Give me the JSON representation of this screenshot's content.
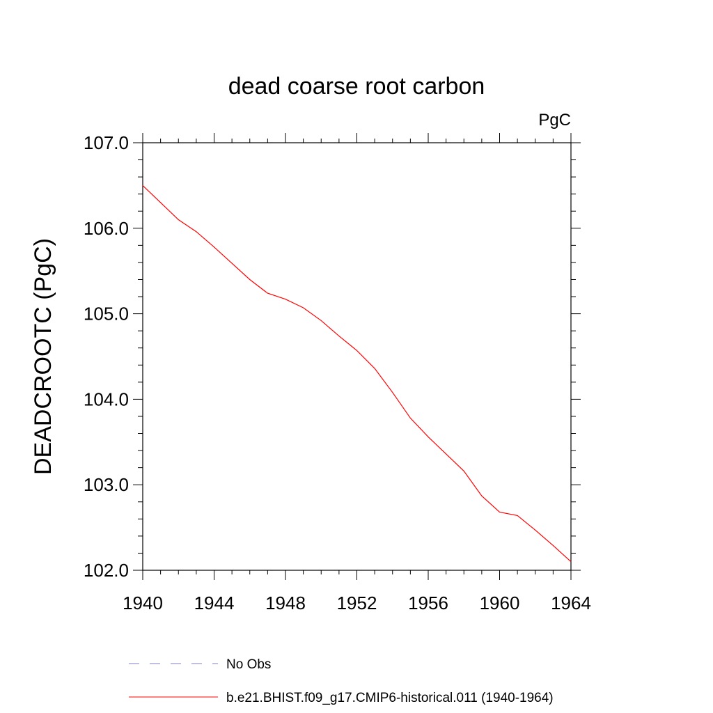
{
  "chart_data": {
    "type": "line",
    "title": "dead coarse root carbon",
    "units_label": "PgC",
    "xlabel": "",
    "ylabel": "DEADCROOTC  (PgC)",
    "xlim": [
      1940,
      1964
    ],
    "ylim": [
      102.0,
      107.0
    ],
    "x_ticks": [
      1940,
      1944,
      1948,
      1952,
      1956,
      1960,
      1964
    ],
    "x_tick_labels": [
      "1940",
      "1944",
      "1948",
      "1952",
      "1956",
      "1960",
      "1964"
    ],
    "y_ticks": [
      102.0,
      103.0,
      104.0,
      105.0,
      106.0,
      107.0
    ],
    "y_tick_labels": [
      "102.0",
      "103.0",
      "104.0",
      "105.0",
      "106.0",
      "107.0"
    ],
    "grid": false,
    "legend_position": "bottom",
    "series": [
      {
        "name": "b.e21.BHIST.f09_g17.CMIP6-historical.011 (1940-1964)",
        "color": "#ff0000",
        "dash": "solid",
        "x": [
          1940,
          1941,
          1942,
          1943,
          1944,
          1945,
          1946,
          1947,
          1948,
          1949,
          1950,
          1951,
          1952,
          1953,
          1954,
          1955,
          1956,
          1957,
          1958,
          1959,
          1960,
          1961,
          1962,
          1963,
          1964
        ],
        "y": [
          106.5,
          106.3,
          106.1,
          105.96,
          105.78,
          105.59,
          105.4,
          105.24,
          105.17,
          105.07,
          104.92,
          104.74,
          104.57,
          104.36,
          104.08,
          103.78,
          103.56,
          103.36,
          103.16,
          102.87,
          102.68,
          102.64,
          102.47,
          102.29,
          102.1
        ]
      }
    ],
    "legend": [
      {
        "label": "No Obs",
        "color": "#7f7fbf",
        "dash": "dashed"
      },
      {
        "label": "b.e21.BHIST.f09_g17.CMIP6-historical.011 (1940-1964)",
        "color": "#ff0000",
        "dash": "solid"
      }
    ]
  }
}
